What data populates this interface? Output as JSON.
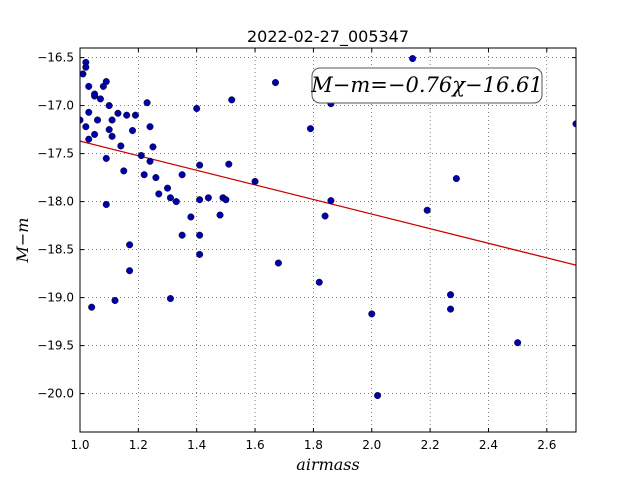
{
  "chart_data": {
    "type": "scatter",
    "title": "2022-02-27_005347",
    "xlabel": "airmass",
    "ylabel": "M−m",
    "xlim": [
      1.0,
      2.7
    ],
    "ylim": [
      -20.4,
      -16.4
    ],
    "xticks": [
      1.0,
      1.2,
      1.4,
      1.6,
      1.8,
      2.0,
      2.2,
      2.4,
      2.6
    ],
    "xtick_labels": [
      "1.0",
      "1.2",
      "1.4",
      "1.6",
      "1.8",
      "2.0",
      "2.2",
      "2.4",
      "2.6"
    ],
    "yticks": [
      -16.5,
      -17.0,
      -17.5,
      -18.0,
      -18.5,
      -19.0,
      -19.5,
      -20.0
    ],
    "ytick_labels": [
      "−16.5",
      "−17.0",
      "−17.5",
      "−18.0",
      "−18.5",
      "−19.0",
      "−19.5",
      "−20.0"
    ],
    "grid": true,
    "annotation": "M−m=−0.76χ−16.61",
    "fit": {
      "slope": -0.76,
      "intercept": -16.61,
      "color": "#cc0000"
    },
    "point_color": "#0000aa",
    "points": [
      [
        1.0,
        -17.15
      ],
      [
        1.01,
        -16.67
      ],
      [
        1.02,
        -16.55
      ],
      [
        1.02,
        -16.6
      ],
      [
        1.02,
        -17.22
      ],
      [
        1.03,
        -17.07
      ],
      [
        1.03,
        -17.35
      ],
      [
        1.03,
        -16.8
      ],
      [
        1.04,
        -19.1
      ],
      [
        1.05,
        -16.9
      ],
      [
        1.05,
        -16.88
      ],
      [
        1.05,
        -17.3
      ],
      [
        1.06,
        -17.15
      ],
      [
        1.07,
        -16.93
      ],
      [
        1.08,
        -16.8
      ],
      [
        1.09,
        -16.75
      ],
      [
        1.09,
        -17.55
      ],
      [
        1.09,
        -18.03
      ],
      [
        1.1,
        -17.0
      ],
      [
        1.1,
        -17.25
      ],
      [
        1.11,
        -17.32
      ],
      [
        1.11,
        -17.15
      ],
      [
        1.12,
        -19.03
      ],
      [
        1.13,
        -17.08
      ],
      [
        1.14,
        -17.42
      ],
      [
        1.15,
        -17.68
      ],
      [
        1.16,
        -17.1
      ],
      [
        1.17,
        -18.45
      ],
      [
        1.17,
        -18.72
      ],
      [
        1.18,
        -17.26
      ],
      [
        1.19,
        -17.1
      ],
      [
        1.21,
        -17.52
      ],
      [
        1.22,
        -17.72
      ],
      [
        1.23,
        -16.97
      ],
      [
        1.24,
        -17.22
      ],
      [
        1.24,
        -17.58
      ],
      [
        1.25,
        -17.43
      ],
      [
        1.26,
        -17.75
      ],
      [
        1.27,
        -17.92
      ],
      [
        1.3,
        -17.86
      ],
      [
        1.31,
        -17.96
      ],
      [
        1.31,
        -19.01
      ],
      [
        1.33,
        -18.0
      ],
      [
        1.35,
        -17.72
      ],
      [
        1.35,
        -18.35
      ],
      [
        1.38,
        -18.16
      ],
      [
        1.4,
        -17.03
      ],
      [
        1.41,
        -17.62
      ],
      [
        1.41,
        -18.35
      ],
      [
        1.41,
        -18.55
      ],
      [
        1.41,
        -17.98
      ],
      [
        1.44,
        -17.96
      ],
      [
        1.48,
        -18.14
      ],
      [
        1.49,
        -17.96
      ],
      [
        1.5,
        -17.98
      ],
      [
        1.51,
        -17.61
      ],
      [
        1.52,
        -16.94
      ],
      [
        1.6,
        -17.79
      ],
      [
        1.67,
        -16.76
      ],
      [
        1.68,
        -18.64
      ],
      [
        1.79,
        -17.24
      ],
      [
        1.82,
        -18.84
      ],
      [
        1.84,
        -18.15
      ],
      [
        1.86,
        -16.98
      ],
      [
        1.86,
        -17.99
      ],
      [
        2.0,
        -19.17
      ],
      [
        2.02,
        -20.02
      ],
      [
        2.14,
        -16.51
      ],
      [
        2.19,
        -18.09
      ],
      [
        2.27,
        -19.12
      ],
      [
        2.27,
        -18.97
      ],
      [
        2.29,
        -17.76
      ],
      [
        2.5,
        -19.47
      ],
      [
        2.7,
        -17.19
      ]
    ]
  }
}
